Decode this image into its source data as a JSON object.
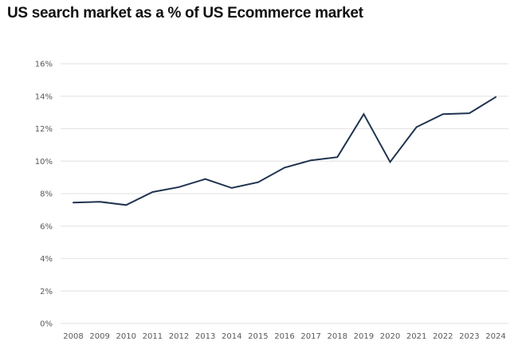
{
  "chart_data": {
    "type": "line",
    "title": "US search market as a % of US Ecommerce market",
    "xlabel": "",
    "ylabel": "",
    "x": [
      "2008",
      "2009",
      "2010",
      "2011",
      "2012",
      "2013",
      "2014",
      "2015",
      "2016",
      "2017",
      "2018",
      "2019",
      "2020",
      "2021",
      "2022",
      "2023",
      "2024"
    ],
    "series": [
      {
        "name": "US search market as a % of US Ecommerce market",
        "values": [
          7.45,
          7.5,
          7.3,
          8.1,
          8.4,
          8.9,
          8.35,
          8.7,
          9.6,
          10.05,
          10.25,
          12.9,
          9.95,
          12.1,
          12.9,
          12.95,
          13.95
        ],
        "color": "#1f3350"
      }
    ],
    "ylim": [
      0,
      16
    ],
    "yticks": [
      0,
      2,
      4,
      6,
      8,
      10,
      12,
      14,
      16
    ],
    "ytick_labels": [
      "0%",
      "2%",
      "4%",
      "6%",
      "8%",
      "10%",
      "12%",
      "14%",
      "16%"
    ],
    "grid": true,
    "legend": "none",
    "grid_color": "#e6e6e6",
    "axis_label_color": "#595959"
  }
}
